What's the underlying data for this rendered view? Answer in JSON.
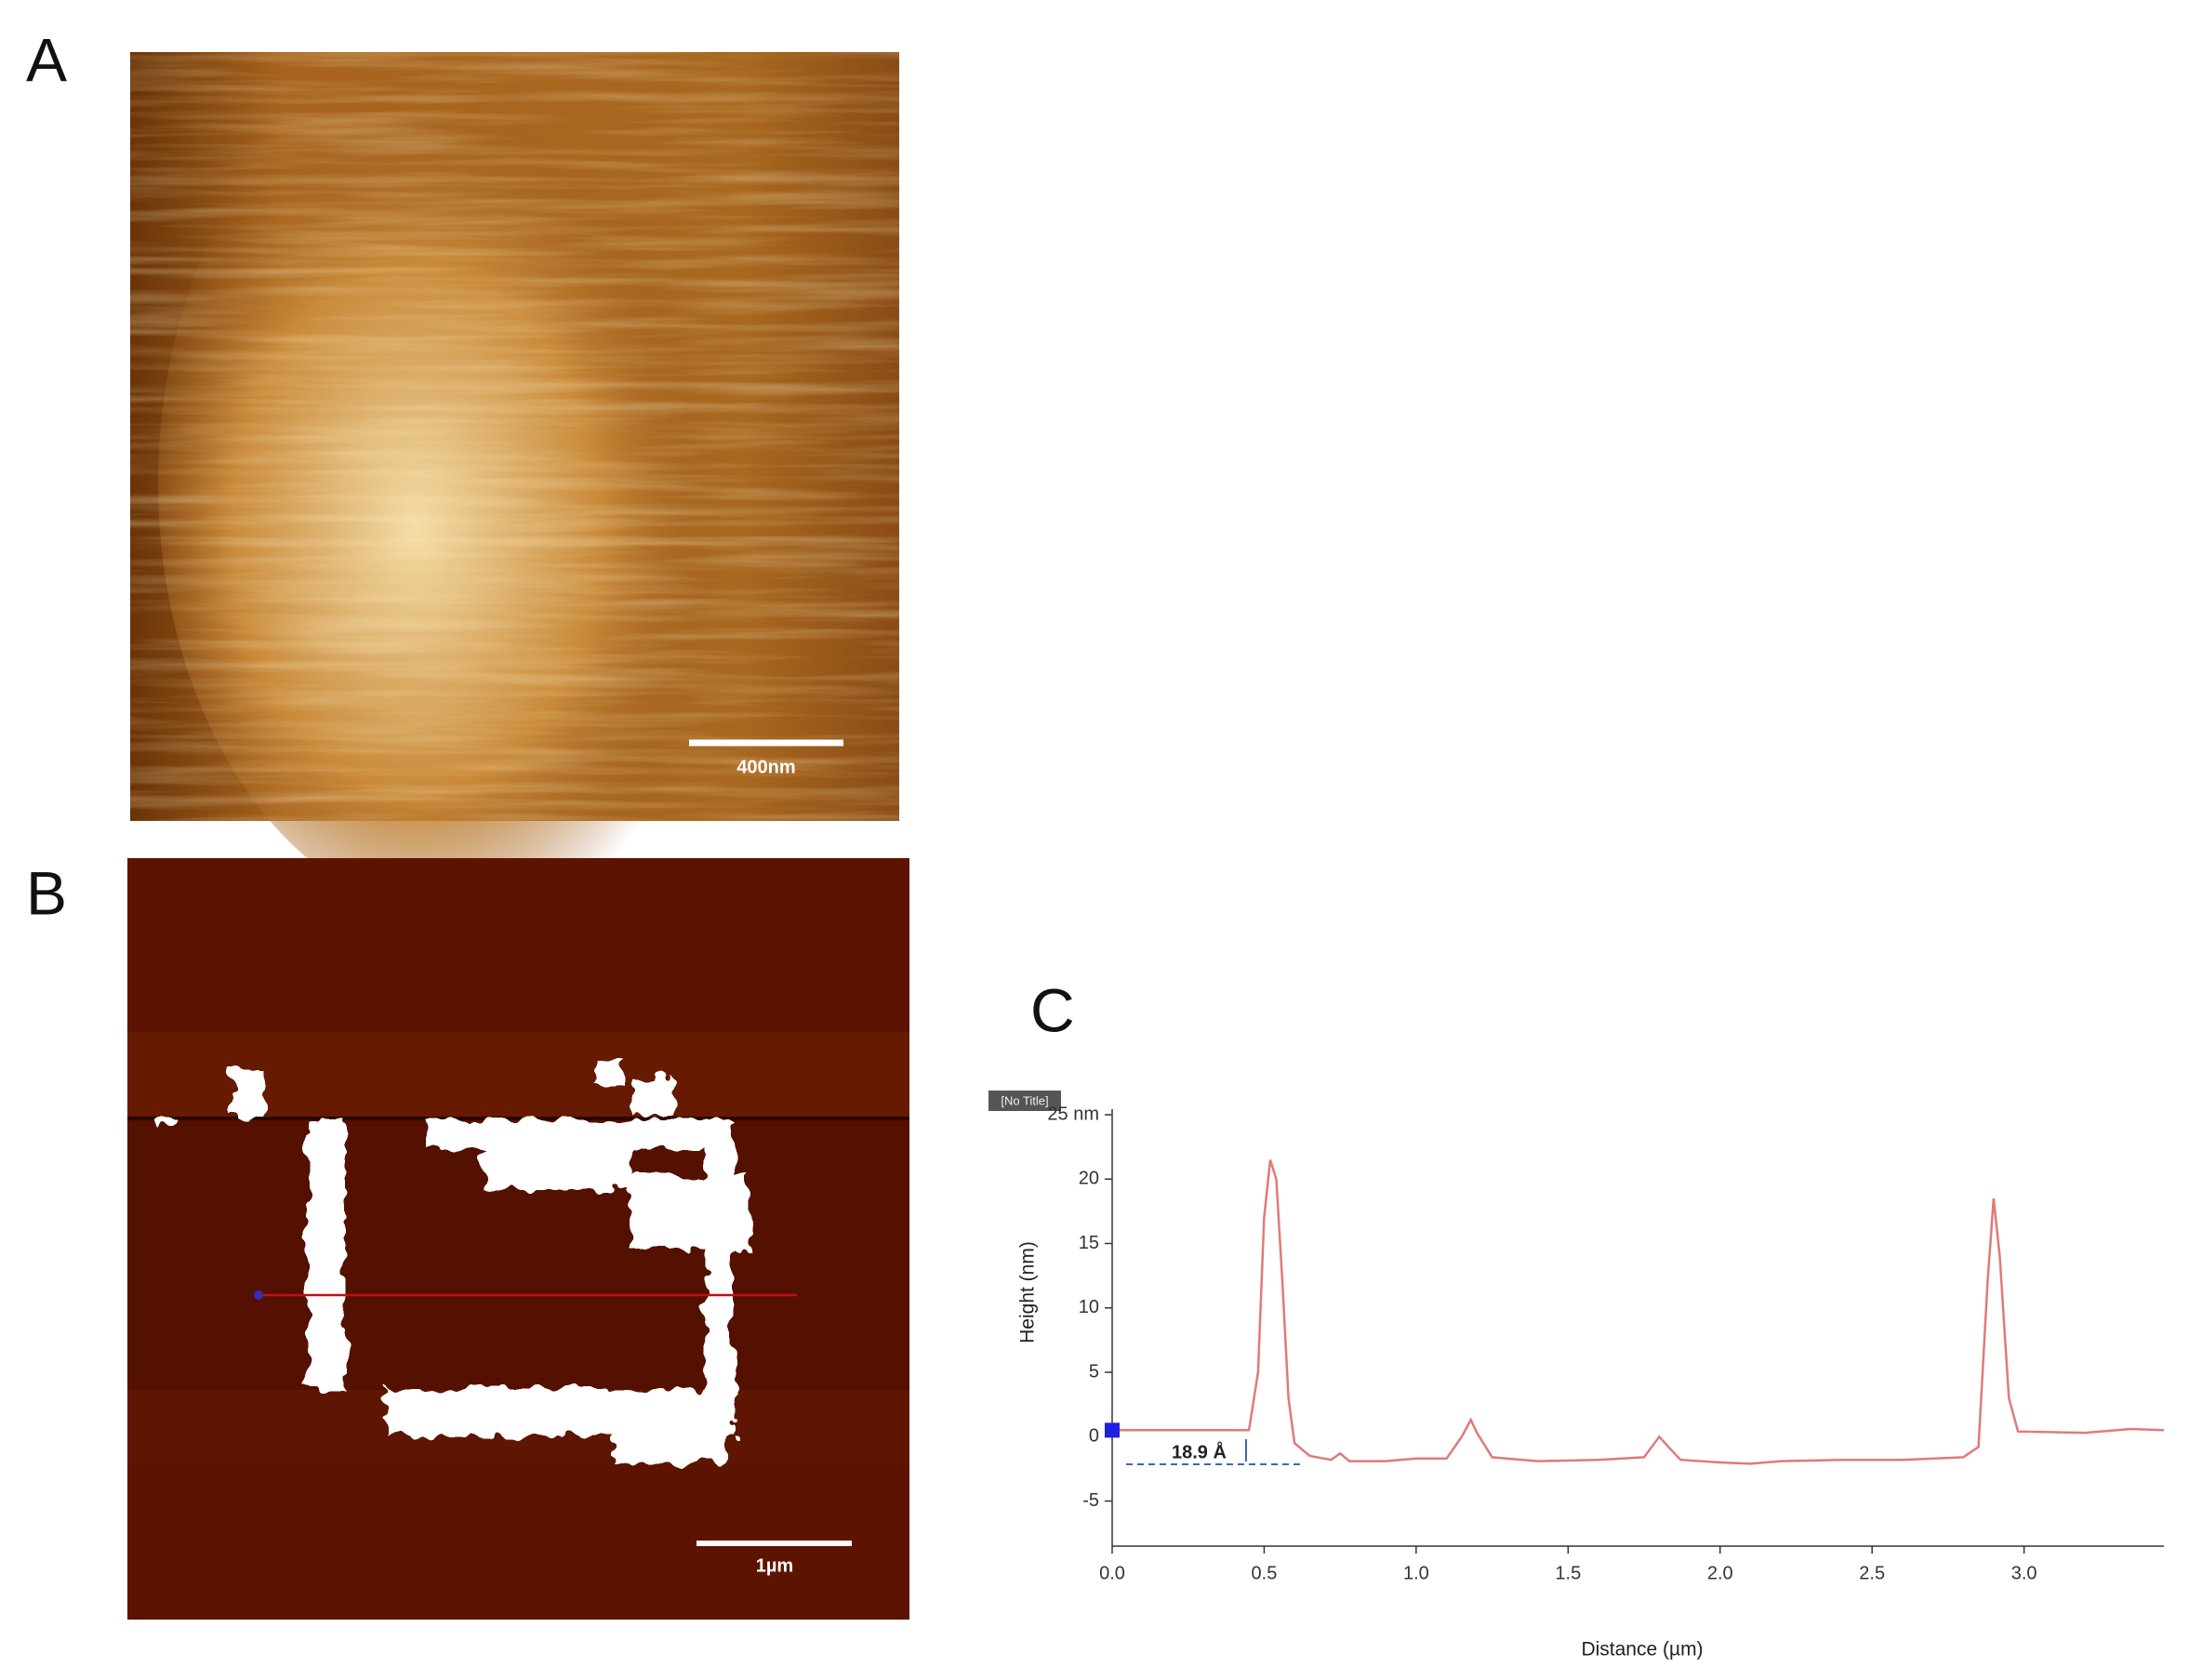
{
  "panels": {
    "a": {
      "label": "A",
      "scale_bar": "400nm"
    },
    "b": {
      "label": "B",
      "scale_bar": "1µm"
    },
    "c": {
      "label": "C"
    }
  },
  "chart_data": {
    "type": "line",
    "plot_title": "[No Title]",
    "xlabel": "Distance (µm)",
    "ylabel": "Height (nm)",
    "annotation": "18.9 Å",
    "x": [
      0,
      0.45,
      0.48,
      0.5,
      0.52,
      0.54,
      0.56,
      0.58,
      0.6,
      0.65,
      0.72,
      0.75,
      0.78,
      0.9,
      1.0,
      1.1,
      1.15,
      1.18,
      1.2,
      1.25,
      1.4,
      1.6,
      1.75,
      1.8,
      1.83,
      1.87,
      2.0,
      2.1,
      2.2,
      2.4,
      2.6,
      2.8,
      2.85,
      2.88,
      2.9,
      2.92,
      2.95,
      2.98,
      3.2,
      3.35,
      3.46
    ],
    "series": [
      {
        "name": "Height",
        "color": "#e07a7a",
        "values": [
          0.5,
          0.5,
          5,
          17,
          21.5,
          20,
          12,
          3,
          -0.5,
          -1.5,
          -1.8,
          -1.3,
          -1.9,
          -1.9,
          -1.7,
          -1.7,
          0,
          1.3,
          0.3,
          -1.6,
          -1.9,
          -1.8,
          -1.6,
          0,
          -0.8,
          -1.8,
          -2.0,
          -2.1,
          -1.9,
          -1.8,
          -1.8,
          -1.6,
          -0.8,
          12,
          18.5,
          14,
          3,
          0.4,
          0.3,
          0.6,
          0.5
        ]
      }
    ],
    "xlim": [
      0,
      3.46
    ],
    "ylim": [
      -8.5,
      25
    ],
    "xticks": [
      {
        "value": 0,
        "label": "0.0"
      },
      0.5,
      {
        "value": 1,
        "label": "1.0"
      },
      1.5,
      {
        "value": 2,
        "label": "2.0"
      },
      2.5,
      {
        "value": 3,
        "label": "3.0"
      }
    ],
    "yticks": [
      -5,
      0,
      5,
      10,
      15,
      20,
      {
        "value": 25,
        "label": "25 nm"
      }
    ],
    "grid": false
  }
}
